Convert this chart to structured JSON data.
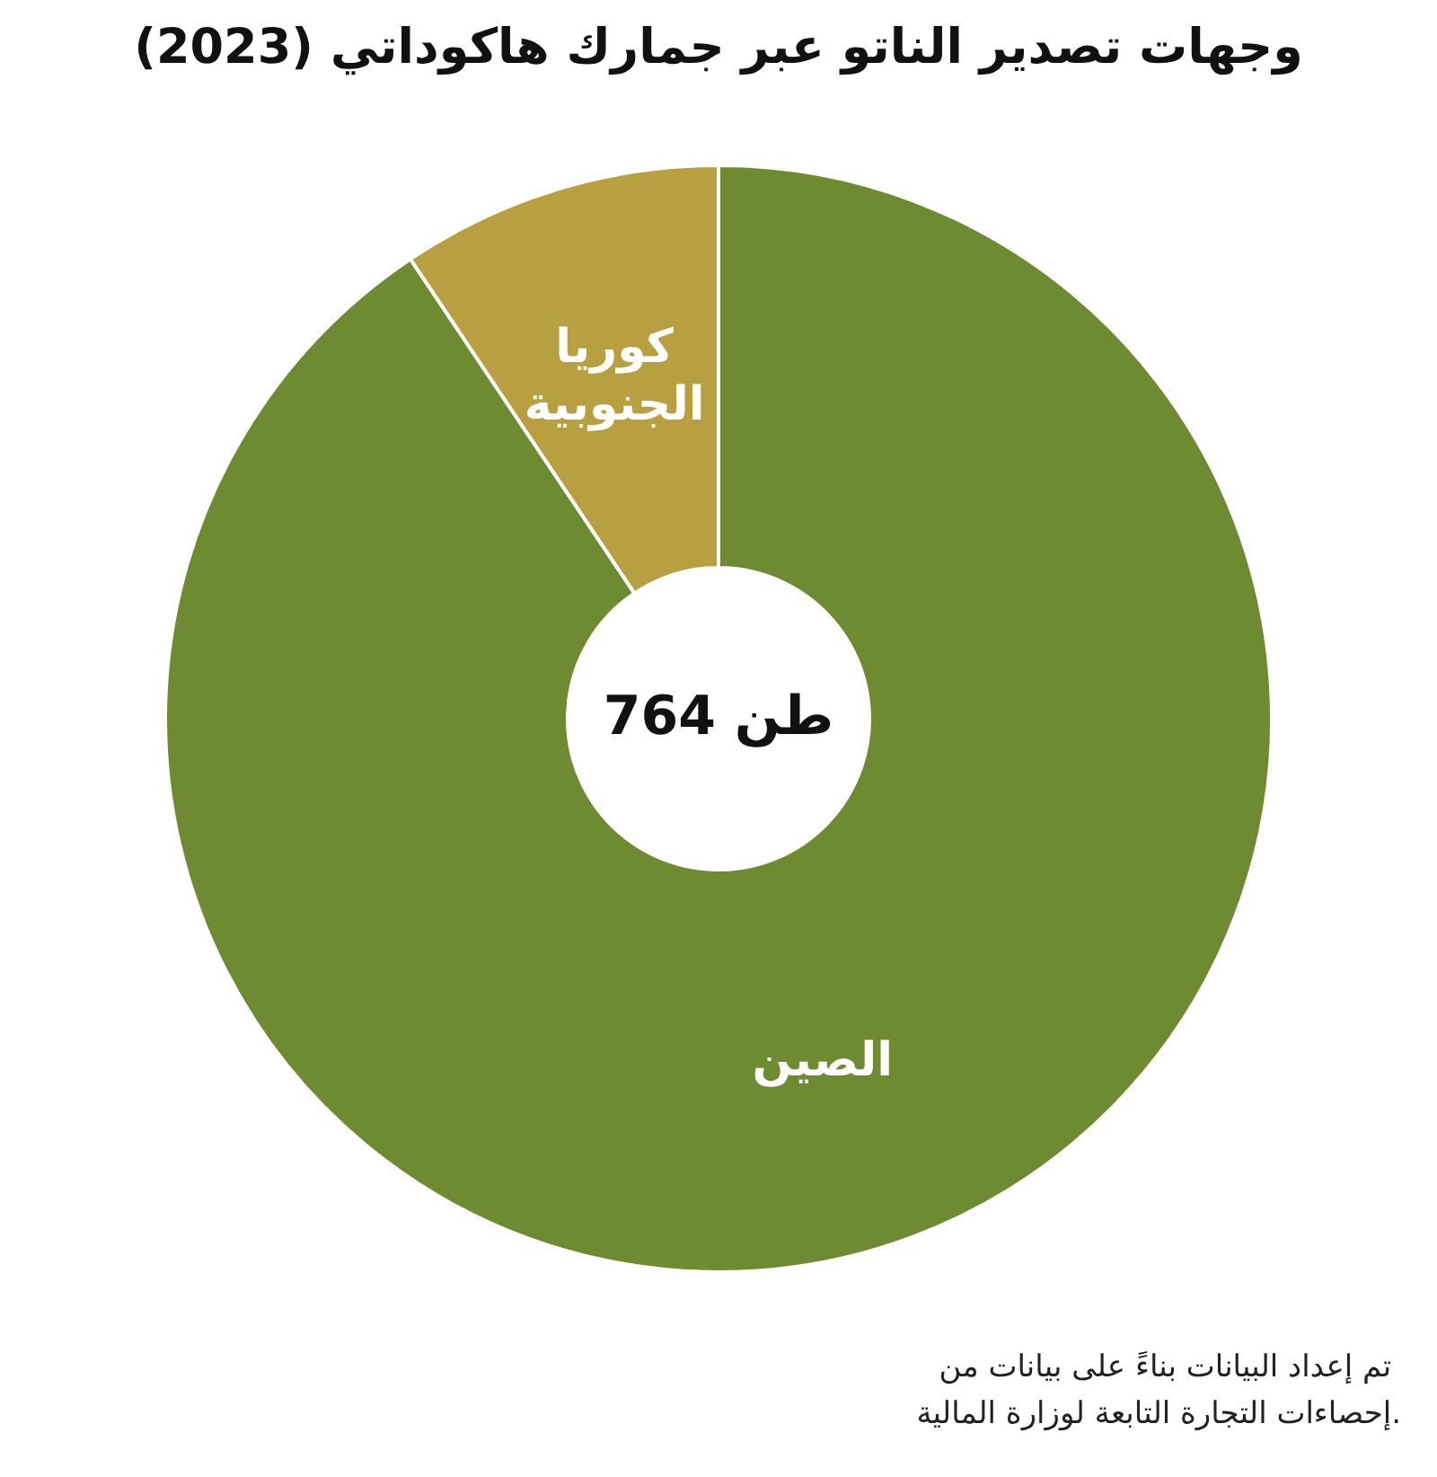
{
  "chart_data": {
    "type": "donut",
    "title": "وجهات تصدير الناتو عبر جمارك هاكوداتي (2023)",
    "categories": [
      "الصين",
      "كوريا الجنوبية"
    ],
    "values": [
      90.6,
      9.4
    ],
    "colors": [
      "#6e8b32",
      "#b8a040"
    ],
    "legend": false,
    "annotations": [
      "764 طن",
      "تم إعداد البيانات بناءً على بيانات من إحصاءات التجارة التابعة لوزارة المالية."
    ]
  }
}
